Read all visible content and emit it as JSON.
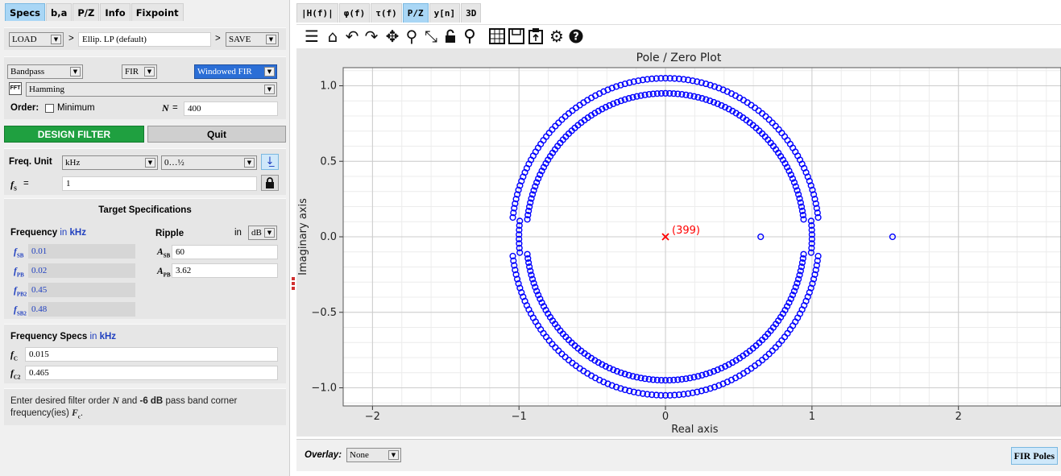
{
  "left": {
    "tabs": [
      "Specs",
      "b,a",
      "P/Z",
      "Info",
      "Fixpoint"
    ],
    "load_label": "LOAD",
    "sep1": ">",
    "preset_value": "Ellip. LP (default)",
    "sep2": ">",
    "save_label": "SAVE",
    "response_type": "Bandpass",
    "filter_type": "FIR",
    "design_method": "Windowed FIR",
    "fft_label": "FFT",
    "window_value": "Hamming",
    "order_label": "Order:",
    "minimum_label": "Minimum",
    "n_label": "N",
    "n_eq": "=",
    "n_value": "400",
    "design_button": "DESIGN FILTER",
    "quit_button": "Quit",
    "freq_unit_label": "Freq. Unit",
    "freq_unit_value": "kHz",
    "freq_range_value": "0…½",
    "fs_label": "f",
    "fs_sub": "S",
    "fs_eq": "=",
    "fs_value": "1",
    "target_title": "Target Specifications",
    "freq_col_label": "Frequency",
    "freq_col_in": "in",
    "freq_col_unit": "kHz",
    "ripple_label": "Ripple",
    "ripple_in": "in",
    "ripple_unit": "dB",
    "freq_rows": [
      {
        "sub": "SB",
        "value": "0.01"
      },
      {
        "sub": "PB",
        "value": "0.02"
      },
      {
        "sub": "PB2",
        "value": "0.45"
      },
      {
        "sub": "SB2",
        "value": "0.48"
      }
    ],
    "ripple_rows": [
      {
        "sub": "SB",
        "value": "60"
      },
      {
        "sub": "PB",
        "value": "3.62"
      }
    ],
    "freq_specs_label": "Frequency Specs",
    "freq_specs_in": "in",
    "freq_specs_unit": "kHz",
    "fc_rows": [
      {
        "sub": "C",
        "value": "0.015"
      },
      {
        "sub": "C2",
        "value": "0.465"
      }
    ],
    "info_text_1": "Enter desired filter order",
    "info_n": "N",
    "info_and": "and",
    "info_db": "-6 dB",
    "info_text_2": "pass band corner",
    "info_text_3": "frequency(ies)",
    "info_fc": "F",
    "info_fc_sub": "c",
    "info_dot": "."
  },
  "right": {
    "tabs": [
      "|H(f)|",
      "φ(f)",
      "τ(f)",
      "P/Z",
      "y[n]",
      "3D"
    ],
    "toolbar_icons": [
      "menu-icon",
      "home-icon",
      "undo-icon",
      "redo-icon",
      "pan-icon",
      "zoom-icon",
      "zoom-full-icon",
      "lock-icon",
      "marker-icon",
      "grid-icon",
      "save-icon",
      "clipboard-icon",
      "gear-icon",
      "help-icon"
    ],
    "overlay_label": "Overlay:",
    "overlay_value": "None",
    "fir_poles_button": "FIR Poles"
  },
  "chart_data": {
    "type": "scatter",
    "title": "Pole / Zero Plot",
    "xlabel": "Real axis",
    "ylabel": "Imaginary axis",
    "xlim": [
      -2.2,
      2.7
    ],
    "ylim": [
      -1.12,
      1.12
    ],
    "xticks": [
      "−2",
      "−1",
      "0",
      "1",
      "2"
    ],
    "xtick_values": [
      -2,
      -1,
      0,
      1,
      2
    ],
    "yticks": [
      "1.0",
      "0.5",
      "0.0",
      "−0.5",
      "−1.0"
    ],
    "ytick_values": [
      1.0,
      0.5,
      0.0,
      -0.5,
      -1.0
    ],
    "grid": true,
    "zero_color": "#0000ff",
    "pole_color": "#ff0000",
    "pole": {
      "x": 0,
      "y": 0,
      "label": "(399)"
    },
    "zero_rings": [
      {
        "radius": 1.05,
        "arcs_deg": [
          [
            7,
            173
          ]
        ]
      },
      {
        "radius": 0.95,
        "arcs_deg": [
          [
            7,
            173
          ]
        ]
      },
      {
        "radius": 1.05,
        "arcs_deg": [
          [
            187,
            353
          ]
        ]
      },
      {
        "radius": 0.95,
        "arcs_deg": [
          [
            187,
            353
          ]
        ]
      },
      {
        "radius": 1.0,
        "arcs_deg": [
          [
            -6,
            6
          ],
          [
            174,
            186
          ]
        ]
      }
    ],
    "extra_zeros": [
      {
        "x": 0.65,
        "y": 0
      },
      {
        "x": 1.55,
        "y": 0
      }
    ]
  }
}
